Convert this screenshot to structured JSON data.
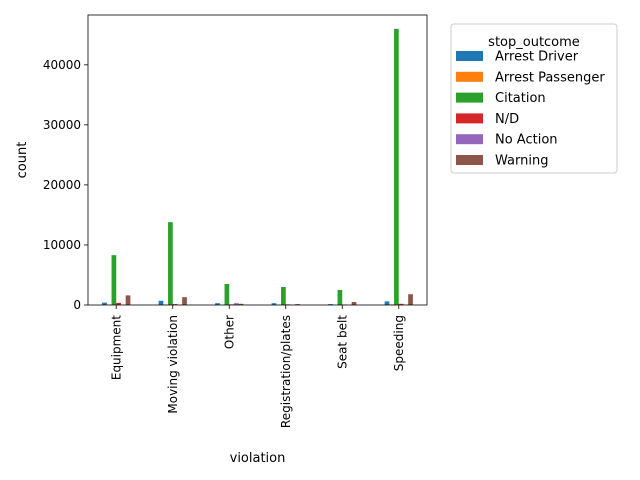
{
  "chart_data": {
    "type": "bar",
    "xlabel": "violation",
    "ylabel": "count",
    "categories": [
      "Equipment",
      "Moving violation",
      "Other",
      "Registration/plates",
      "Seat belt",
      "Speeding"
    ],
    "ylim": [
      0,
      48300
    ],
    "yticks": [
      0,
      10000,
      20000,
      30000,
      40000
    ],
    "grid": false,
    "legend_title": "stop_outcome",
    "legend_position": "outside-right",
    "series": [
      {
        "name": "Arrest Driver",
        "color": "#1f77b4",
        "values": [
          400,
          700,
          300,
          300,
          150,
          600
        ]
      },
      {
        "name": "Arrest Passenger",
        "color": "#ff7f0e",
        "values": [
          30,
          60,
          30,
          25,
          15,
          100
        ]
      },
      {
        "name": "Citation",
        "color": "#2ca02c",
        "values": [
          8300,
          13800,
          3500,
          3000,
          2500,
          46000
        ]
      },
      {
        "name": "N/D",
        "color": "#d62728",
        "values": [
          350,
          150,
          100,
          100,
          50,
          200
        ]
      },
      {
        "name": "No Action",
        "color": "#9467bd",
        "values": [
          30,
          20,
          300,
          20,
          10,
          50
        ]
      },
      {
        "name": "Warning",
        "color": "#8c564b",
        "values": [
          1600,
          1300,
          200,
          150,
          500,
          1800
        ]
      }
    ]
  }
}
